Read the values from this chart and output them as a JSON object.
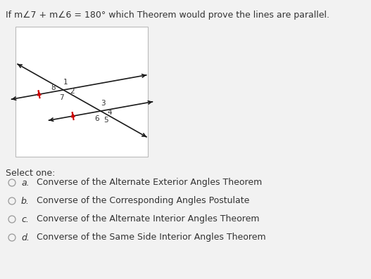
{
  "title": "If m∑7 + m∑6 = 180° which Theorem would prove the lines are parallel.",
  "background_color": "#f2f2f2",
  "line_color": "#1a1a1a",
  "tick_color": "#cc0000",
  "font_color": "#333333",
  "select_one_text": "Select one:",
  "options": [
    {
      "label": "a.",
      "text": "Converse of the Alternate Exterior Angles Theorem"
    },
    {
      "label": "b.",
      "text": "Converse of the Corresponding Angles Postulate"
    },
    {
      "label": "c.",
      "text": "Converse of the Alternate Interior Angles Theorem"
    },
    {
      "label": "d.",
      "text": "Converse of the Same Side Interior Angles Theorem"
    }
  ]
}
